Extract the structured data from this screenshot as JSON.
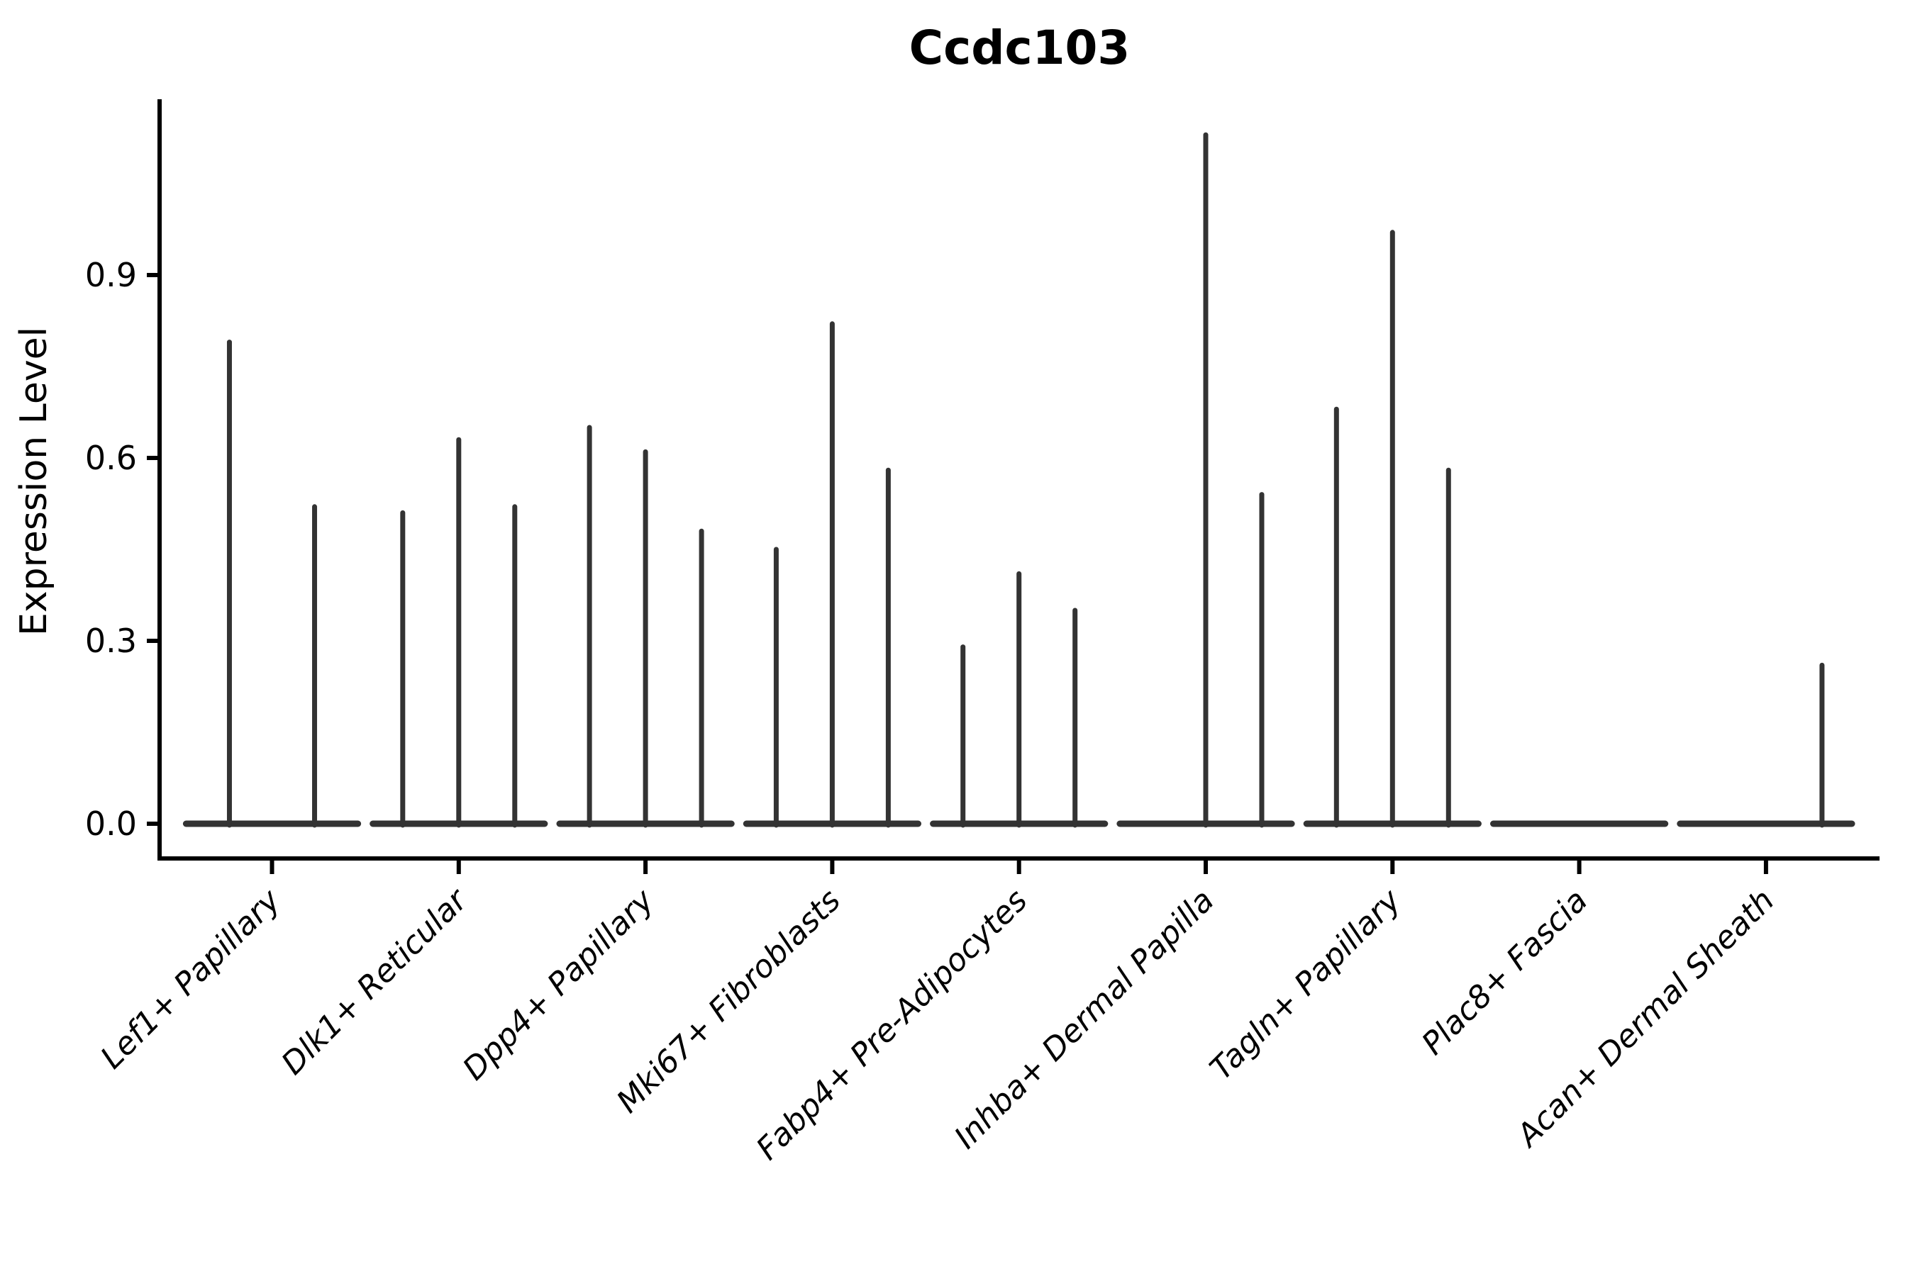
{
  "figure": {
    "background": "#ffffff",
    "line_color": "#333333",
    "axis_color": "#000000"
  },
  "chart_data": {
    "type": "violin",
    "title": "Ccdc103",
    "xlabel": "",
    "ylabel": "Expression Level",
    "ylim": [
      0,
      1.19
    ],
    "grid": false,
    "legend": null,
    "yticks": [
      {
        "value": 0.0,
        "label": "0.0"
      },
      {
        "value": 0.3,
        "label": "0.3"
      },
      {
        "value": 0.6,
        "label": "0.6"
      },
      {
        "value": 0.9,
        "label": "0.9"
      }
    ],
    "categories": [
      "Lef1+ Papillary",
      "Dlk1+ Reticular",
      "Dpp4+ Papillary",
      "Mki67+ Fibroblasts",
      "Fabp4+ Pre-Adipocytes",
      "Inhba+ Dermal Papilla",
      "Tagln+ Papillary",
      "Plac8+ Fascia",
      "Acan+ Dermal Sheath"
    ],
    "baseline_halfwidth": 0.46,
    "groups": [
      {
        "category": "Lef1+ Papillary",
        "violins": [
          {
            "offset": -0.228,
            "max": 0.79
          },
          {
            "offset": 0.228,
            "max": 0.52
          }
        ]
      },
      {
        "category": "Dlk1+ Reticular",
        "violins": [
          {
            "offset": -0.3,
            "max": 0.51
          },
          {
            "offset": 0,
            "max": 0.63
          },
          {
            "offset": 0.3,
            "max": 0.52
          }
        ]
      },
      {
        "category": "Dpp4+ Papillary",
        "violins": [
          {
            "offset": -0.3,
            "max": 0.65
          },
          {
            "offset": 0,
            "max": 0.61
          },
          {
            "offset": 0.3,
            "max": 0.48
          }
        ]
      },
      {
        "category": "Mki67+ Fibroblasts",
        "violins": [
          {
            "offset": -0.3,
            "max": 0.45
          },
          {
            "offset": 0,
            "max": 0.82
          },
          {
            "offset": 0.3,
            "max": 0.58
          }
        ]
      },
      {
        "category": "Fabp4+ Pre-Adipocytes",
        "violins": [
          {
            "offset": -0.3,
            "max": 0.29
          },
          {
            "offset": 0,
            "max": 0.41
          },
          {
            "offset": 0.3,
            "max": 0.35
          }
        ]
      },
      {
        "category": "Inhba+ Dermal Papilla",
        "violins": [
          {
            "offset": 0,
            "max": 1.13
          },
          {
            "offset": 0.3,
            "max": 0.54
          }
        ]
      },
      {
        "category": "Tagln+ Papillary",
        "violins": [
          {
            "offset": -0.3,
            "max": 0.68
          },
          {
            "offset": 0,
            "max": 0.97
          },
          {
            "offset": 0.3,
            "max": 0.58
          }
        ]
      },
      {
        "category": "Plac8+ Fascia",
        "violins": []
      },
      {
        "category": "Acan+ Dermal Sheath",
        "violins": [
          {
            "offset": 0.3,
            "max": 0.26
          }
        ]
      }
    ]
  }
}
